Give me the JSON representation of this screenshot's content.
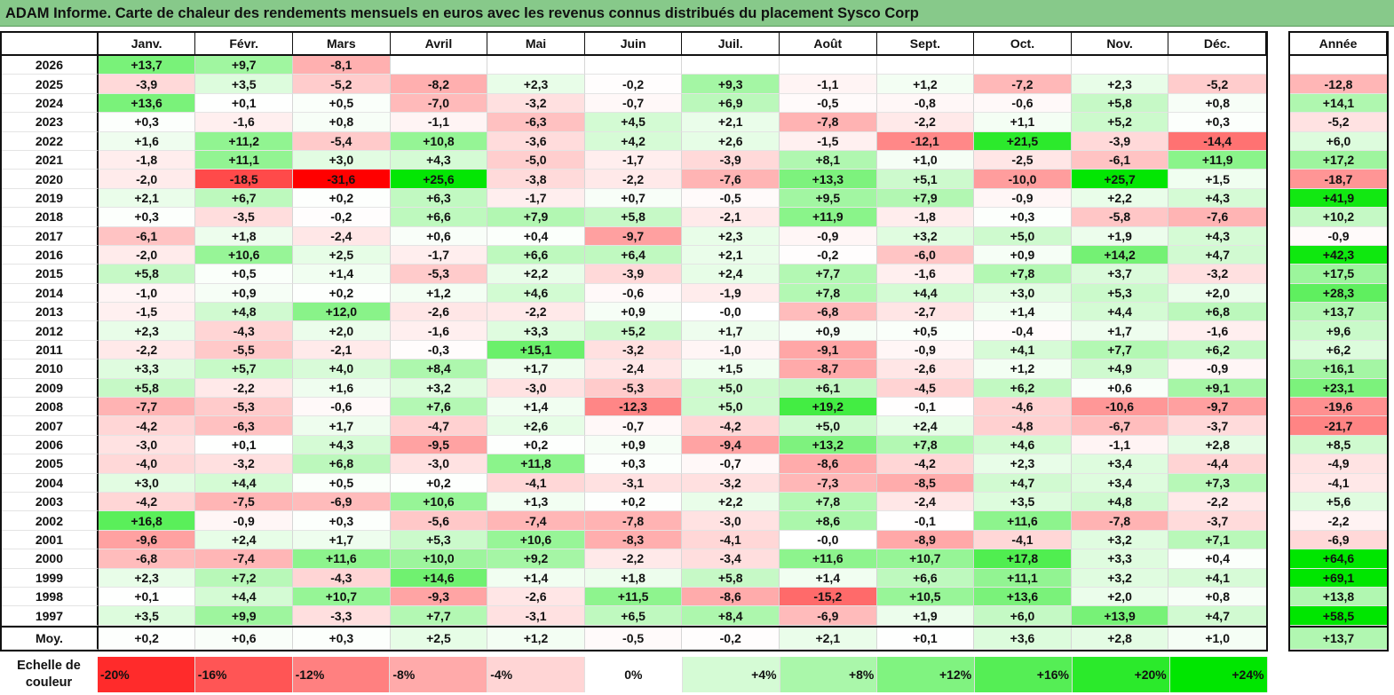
{
  "title": "ADAM Informe. Carte de chaleur des rendements mensuels en euros avec les revenus connus distribués du placement Sysco Corp",
  "chart_data": {
    "type": "heatmap",
    "title": "ADAM Informe. Carte de chaleur des rendements mensuels en euros avec les revenus connus distribués du placement Sysco Corp",
    "months": [
      "Janv.",
      "Févr.",
      "Mars",
      "Avril",
      "Mai",
      "Juin",
      "Juil.",
      "Août",
      "Sept.",
      "Oct.",
      "Nov.",
      "Déc."
    ],
    "year_header": "Année",
    "rows": [
      {
        "year": "2026",
        "values": [
          "+13,7",
          "+9,7",
          "-8,1",
          "",
          "",
          "",
          "",
          "",
          "",
          "",
          "",
          ""
        ],
        "annual": ""
      },
      {
        "year": "2025",
        "values": [
          "-3,9",
          "+3,5",
          "-5,2",
          "-8,2",
          "+2,3",
          "-0,2",
          "+9,3",
          "-1,1",
          "+1,2",
          "-7,2",
          "+2,3",
          "-5,2"
        ],
        "annual": "-12,8"
      },
      {
        "year": "2024",
        "values": [
          "+13,6",
          "+0,1",
          "+0,5",
          "-7,0",
          "-3,2",
          "-0,7",
          "+6,9",
          "-0,5",
          "-0,8",
          "-0,6",
          "+5,8",
          "+0,8"
        ],
        "annual": "+14,1"
      },
      {
        "year": "2023",
        "values": [
          "+0,3",
          "-1,6",
          "+0,8",
          "-1,1",
          "-6,3",
          "+4,5",
          "+2,1",
          "-7,8",
          "-2,2",
          "+1,1",
          "+5,2",
          "+0,3"
        ],
        "annual": "-5,2"
      },
      {
        "year": "2022",
        "values": [
          "+1,6",
          "+11,2",
          "-5,4",
          "+10,8",
          "-3,6",
          "+4,2",
          "+2,6",
          "-1,5",
          "-12,1",
          "+21,5",
          "-3,9",
          "-14,4"
        ],
        "annual": "+6,0"
      },
      {
        "year": "2021",
        "values": [
          "-1,8",
          "+11,1",
          "+3,0",
          "+4,3",
          "-5,0",
          "-1,7",
          "-3,9",
          "+8,1",
          "+1,0",
          "-2,5",
          "-6,1",
          "+11,9"
        ],
        "annual": "+17,2"
      },
      {
        "year": "2020",
        "values": [
          "-2,0",
          "-18,5",
          "-31,6",
          "+25,6",
          "-3,8",
          "-2,2",
          "-7,6",
          "+13,3",
          "+5,1",
          "-10,0",
          "+25,7",
          "+1,5"
        ],
        "annual": "-18,7"
      },
      {
        "year": "2019",
        "values": [
          "+2,1",
          "+6,7",
          "+0,2",
          "+6,3",
          "-1,7",
          "+0,7",
          "-0,5",
          "+9,5",
          "+7,9",
          "-0,9",
          "+2,2",
          "+4,3"
        ],
        "annual": "+41,9"
      },
      {
        "year": "2018",
        "values": [
          "+0,3",
          "-3,5",
          "-0,2",
          "+6,6",
          "+7,9",
          "+5,8",
          "-2,1",
          "+11,9",
          "-1,8",
          "+0,3",
          "-5,8",
          "-7,6"
        ],
        "annual": "+10,2"
      },
      {
        "year": "2017",
        "values": [
          "-6,1",
          "+1,8",
          "-2,4",
          "+0,6",
          "+0,4",
          "-9,7",
          "+2,3",
          "-0,9",
          "+3,2",
          "+5,0",
          "+1,9",
          "+4,3"
        ],
        "annual": "-0,9"
      },
      {
        "year": "2016",
        "values": [
          "-2,0",
          "+10,6",
          "+2,5",
          "-1,7",
          "+6,6",
          "+6,4",
          "+2,1",
          "-0,2",
          "-6,0",
          "+0,9",
          "+14,2",
          "+4,7"
        ],
        "annual": "+42,3"
      },
      {
        "year": "2015",
        "values": [
          "+5,8",
          "+0,5",
          "+1,4",
          "-5,3",
          "+2,2",
          "-3,9",
          "+2,4",
          "+7,7",
          "-1,6",
          "+7,8",
          "+3,7",
          "-3,2"
        ],
        "annual": "+17,5"
      },
      {
        "year": "2014",
        "values": [
          "-1,0",
          "+0,9",
          "+0,2",
          "+1,2",
          "+4,6",
          "-0,6",
          "-1,9",
          "+7,8",
          "+4,4",
          "+3,0",
          "+5,3",
          "+2,0"
        ],
        "annual": "+28,3"
      },
      {
        "year": "2013",
        "values": [
          "-1,5",
          "+4,8",
          "+12,0",
          "-2,6",
          "-2,2",
          "+0,9",
          "-0,0",
          "-6,8",
          "-2,7",
          "+1,4",
          "+4,4",
          "+6,8"
        ],
        "annual": "+13,7"
      },
      {
        "year": "2012",
        "values": [
          "+2,3",
          "-4,3",
          "+2,0",
          "-1,6",
          "+3,3",
          "+5,2",
          "+1,7",
          "+0,9",
          "+0,5",
          "-0,4",
          "+1,7",
          "-1,6"
        ],
        "annual": "+9,6"
      },
      {
        "year": "2011",
        "values": [
          "-2,2",
          "-5,5",
          "-2,1",
          "-0,3",
          "+15,1",
          "-3,2",
          "-1,0",
          "-9,1",
          "-0,9",
          "+4,1",
          "+7,7",
          "+6,2"
        ],
        "annual": "+6,2"
      },
      {
        "year": "2010",
        "values": [
          "+3,3",
          "+5,7",
          "+4,0",
          "+8,4",
          "+1,7",
          "-2,4",
          "+1,5",
          "-8,7",
          "-2,6",
          "+1,2",
          "+4,9",
          "-0,9"
        ],
        "annual": "+16,1"
      },
      {
        "year": "2009",
        "values": [
          "+5,8",
          "-2,2",
          "+1,6",
          "+3,2",
          "-3,0",
          "-5,3",
          "+5,0",
          "+6,1",
          "-4,5",
          "+6,2",
          "+0,6",
          "+9,1"
        ],
        "annual": "+23,1"
      },
      {
        "year": "2008",
        "values": [
          "-7,7",
          "-5,3",
          "-0,6",
          "+7,6",
          "+1,4",
          "-12,3",
          "+5,0",
          "+19,2",
          "-0,1",
          "-4,6",
          "-10,6",
          "-9,7"
        ],
        "annual": "-19,6"
      },
      {
        "year": "2007",
        "values": [
          "-4,2",
          "-6,3",
          "+1,7",
          "-4,7",
          "+2,6",
          "-0,7",
          "-4,2",
          "+5,0",
          "+2,4",
          "-4,8",
          "-6,7",
          "-3,7"
        ],
        "annual": "-21,7"
      },
      {
        "year": "2006",
        "values": [
          "-3,0",
          "+0,1",
          "+4,3",
          "-9,5",
          "+0,2",
          "+0,9",
          "-9,4",
          "+13,2",
          "+7,8",
          "+4,6",
          "-1,1",
          "+2,8"
        ],
        "annual": "+8,5"
      },
      {
        "year": "2005",
        "values": [
          "-4,0",
          "-3,2",
          "+6,8",
          "-3,0",
          "+11,8",
          "+0,3",
          "-0,7",
          "-8,6",
          "-4,2",
          "+2,3",
          "+3,4",
          "-4,4"
        ],
        "annual": "-4,9"
      },
      {
        "year": "2004",
        "values": [
          "+3,0",
          "+4,4",
          "+0,5",
          "+0,2",
          "-4,1",
          "-3,1",
          "-3,2",
          "-7,3",
          "-8,5",
          "+4,7",
          "+3,4",
          "+7,3"
        ],
        "annual": "-4,1"
      },
      {
        "year": "2003",
        "values": [
          "-4,2",
          "-7,5",
          "-6,9",
          "+10,6",
          "+1,3",
          "+0,2",
          "+2,2",
          "+7,8",
          "-2,4",
          "+3,5",
          "+4,8",
          "-2,2"
        ],
        "annual": "+5,6"
      },
      {
        "year": "2002",
        "values": [
          "+16,8",
          "-0,9",
          "+0,3",
          "-5,6",
          "-7,4",
          "-7,8",
          "-3,0",
          "+8,6",
          "-0,1",
          "+11,6",
          "-7,8",
          "-3,7"
        ],
        "annual": "-2,2"
      },
      {
        "year": "2001",
        "values": [
          "-9,6",
          "+2,4",
          "+1,7",
          "+5,3",
          "+10,6",
          "-8,3",
          "-4,1",
          "-0,0",
          "-8,9",
          "-4,1",
          "+3,2",
          "+7,1"
        ],
        "annual": "-6,9"
      },
      {
        "year": "2000",
        "values": [
          "-6,8",
          "-7,4",
          "+11,6",
          "+10,0",
          "+9,2",
          "-2,2",
          "-3,4",
          "+11,6",
          "+10,7",
          "+17,8",
          "+3,3",
          "+0,4"
        ],
        "annual": "+64,6"
      },
      {
        "year": "1999",
        "values": [
          "+2,3",
          "+7,2",
          "-4,3",
          "+14,6",
          "+1,4",
          "+1,8",
          "+5,8",
          "+1,4",
          "+6,6",
          "+11,1",
          "+3,2",
          "+4,1"
        ],
        "annual": "+69,1"
      },
      {
        "year": "1998",
        "values": [
          "+0,1",
          "+4,4",
          "+10,7",
          "-9,3",
          "-2,6",
          "+11,5",
          "-8,6",
          "-15,2",
          "+10,5",
          "+13,6",
          "+2,0",
          "+0,8"
        ],
        "annual": "+13,8"
      },
      {
        "year": "1997",
        "values": [
          "+3,5",
          "+9,9",
          "-3,3",
          "+7,7",
          "-3,1",
          "+6,5",
          "+8,4",
          "-6,9",
          "+1,9",
          "+6,0",
          "+13,9",
          "+4,7"
        ],
        "annual": "+58,5"
      }
    ],
    "average": {
      "label": "Moy.",
      "values": [
        "+0,2",
        "+0,6",
        "+0,3",
        "+2,5",
        "+1,2",
        "-0,5",
        "-0,2",
        "+2,1",
        "+0,1",
        "+3,6",
        "+2,8",
        "+1,0"
      ],
      "annual": "+13,7"
    },
    "legend": {
      "title": "Echelle de couleur",
      "steps": [
        {
          "label": "-20%",
          "value": -20
        },
        {
          "label": "-16%",
          "value": -16
        },
        {
          "label": "-12%",
          "value": -12
        },
        {
          "label": "-8%",
          "value": -8
        },
        {
          "label": "-4%",
          "value": -4
        },
        {
          "label": "0%",
          "value": 0
        },
        {
          "label": "+4%",
          "value": 4
        },
        {
          "label": "+8%",
          "value": 8
        },
        {
          "label": "+12%",
          "value": 12
        },
        {
          "label": "+16%",
          "value": 16
        },
        {
          "label": "+20%",
          "value": 20
        },
        {
          "label": "+24%",
          "value": 24
        }
      ]
    },
    "colors": {
      "negative_max": "#ff0000",
      "neutral": "#ffffff",
      "positive_max": "#00e600",
      "title_bar": "#87c98a"
    }
  }
}
